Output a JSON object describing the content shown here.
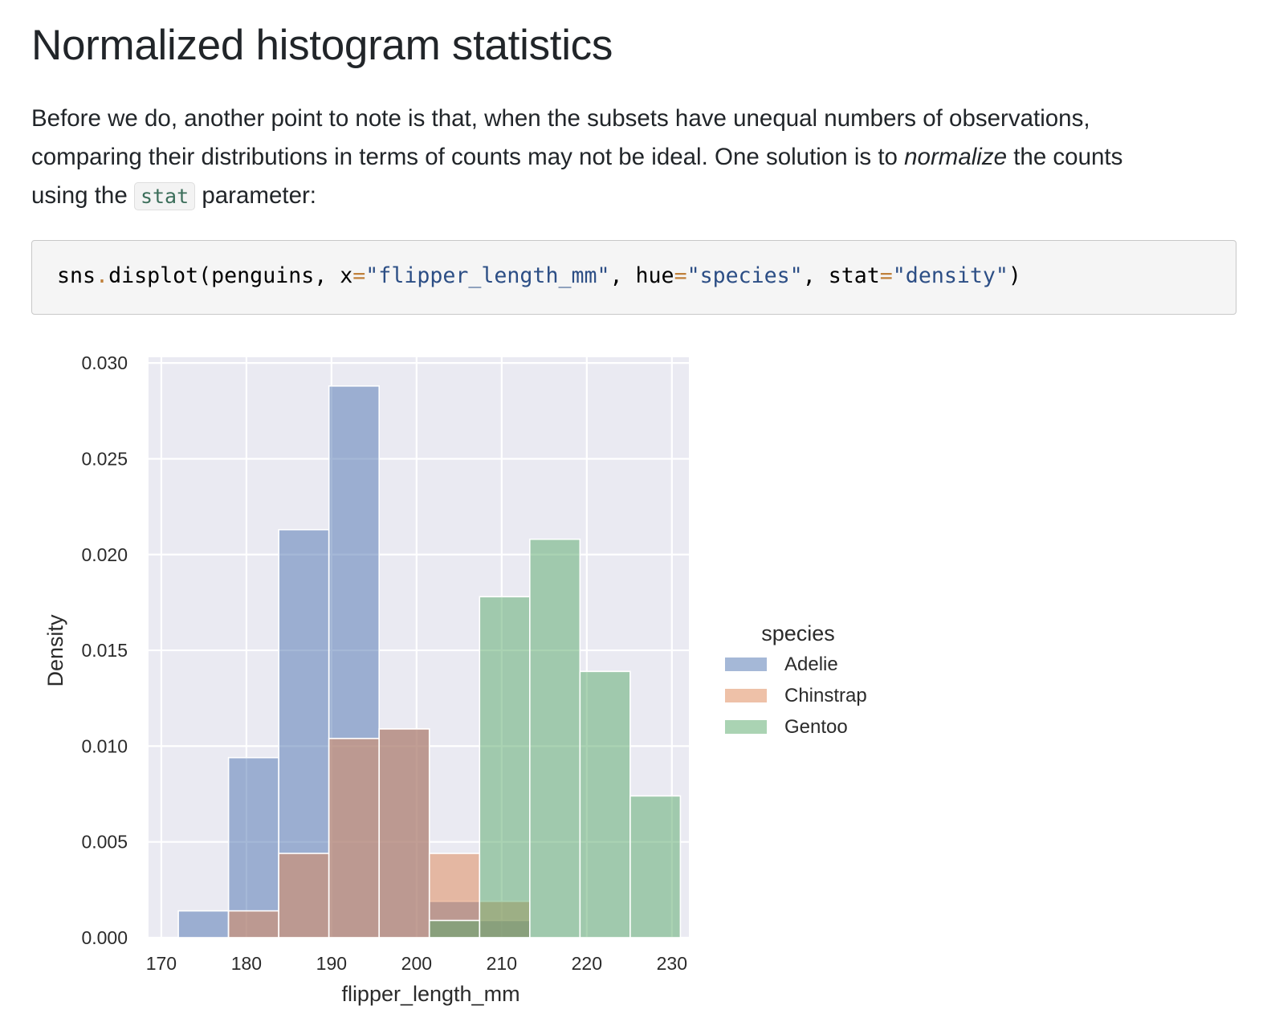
{
  "section": {
    "title": "Normalized histogram statistics",
    "paragraph": {
      "line1": "Before we do, another point to note is that, when the subsets have unequal numbers of observations,",
      "line2_before": "comparing their distributions in terms of counts may not be ideal. One solution is to ",
      "line2_em": "normalize",
      "line2_after": " the counts",
      "line3_before": "using the ",
      "line3_code": "stat",
      "line3_after": " parameter:"
    }
  },
  "code": {
    "tokens": [
      {
        "t": "sns",
        "c": "tok-fn"
      },
      {
        "t": ".",
        "c": "tok-dot"
      },
      {
        "t": "displot(penguins, x",
        "c": "tok-fn"
      },
      {
        "t": "=",
        "c": "tok-op"
      },
      {
        "t": "\"flipper_length_mm\"",
        "c": "tok-str"
      },
      {
        "t": ", hue",
        "c": "tok-fn"
      },
      {
        "t": "=",
        "c": "tok-op"
      },
      {
        "t": "\"species\"",
        "c": "tok-str"
      },
      {
        "t": ", stat",
        "c": "tok-fn"
      },
      {
        "t": "=",
        "c": "tok-op"
      },
      {
        "t": "\"density\"",
        "c": "tok-str"
      },
      {
        "t": ")",
        "c": "tok-fn"
      }
    ]
  },
  "chart_data": {
    "type": "bar",
    "title": "",
    "xlabel": "flipper_length_mm",
    "ylabel": "Density",
    "xlim": [
      168.5,
      232
    ],
    "ylim": [
      0,
      0.0303
    ],
    "xticks": [
      170,
      180,
      190,
      200,
      210,
      220,
      230
    ],
    "yticks": [
      "0.000",
      "0.005",
      "0.010",
      "0.015",
      "0.020",
      "0.025",
      "0.030"
    ],
    "grid": true,
    "legend": {
      "title": "species",
      "position": "right"
    },
    "background_color": "#eaeaf2",
    "series": [
      {
        "name": "Adelie",
        "color": "#4c72b0",
        "bins": [
          {
            "x0": 172.0,
            "x1": 177.9,
            "y": 0.0014
          },
          {
            "x0": 177.9,
            "x1": 183.8,
            "y": 0.0094
          },
          {
            "x0": 183.8,
            "x1": 189.7,
            "y": 0.0213
          },
          {
            "x0": 189.7,
            "x1": 195.6,
            "y": 0.0288
          },
          {
            "x0": 195.6,
            "x1": 201.5,
            "y": 0.0109
          },
          {
            "x0": 201.5,
            "x1": 207.4,
            "y": 0.0019
          },
          {
            "x0": 207.4,
            "x1": 213.3,
            "y": 0.0009
          }
        ]
      },
      {
        "name": "Chinstrap",
        "color": "#dd8452",
        "bins": [
          {
            "x0": 177.9,
            "x1": 183.8,
            "y": 0.0014
          },
          {
            "x0": 183.8,
            "x1": 189.7,
            "y": 0.0044
          },
          {
            "x0": 189.7,
            "x1": 195.6,
            "y": 0.0104
          },
          {
            "x0": 195.6,
            "x1": 201.5,
            "y": 0.0109
          },
          {
            "x0": 201.5,
            "x1": 207.4,
            "y": 0.0044
          },
          {
            "x0": 207.4,
            "x1": 213.3,
            "y": 0.0019
          }
        ]
      },
      {
        "name": "Gentoo",
        "color": "#55a868",
        "bins": [
          {
            "x0": 201.5,
            "x1": 207.4,
            "y": 0.0009
          },
          {
            "x0": 207.4,
            "x1": 213.3,
            "y": 0.0178
          },
          {
            "x0": 213.3,
            "x1": 219.2,
            "y": 0.0208
          },
          {
            "x0": 219.2,
            "x1": 225.1,
            "y": 0.0139
          },
          {
            "x0": 225.1,
            "x1": 231.0,
            "y": 0.0074
          }
        ]
      }
    ]
  }
}
